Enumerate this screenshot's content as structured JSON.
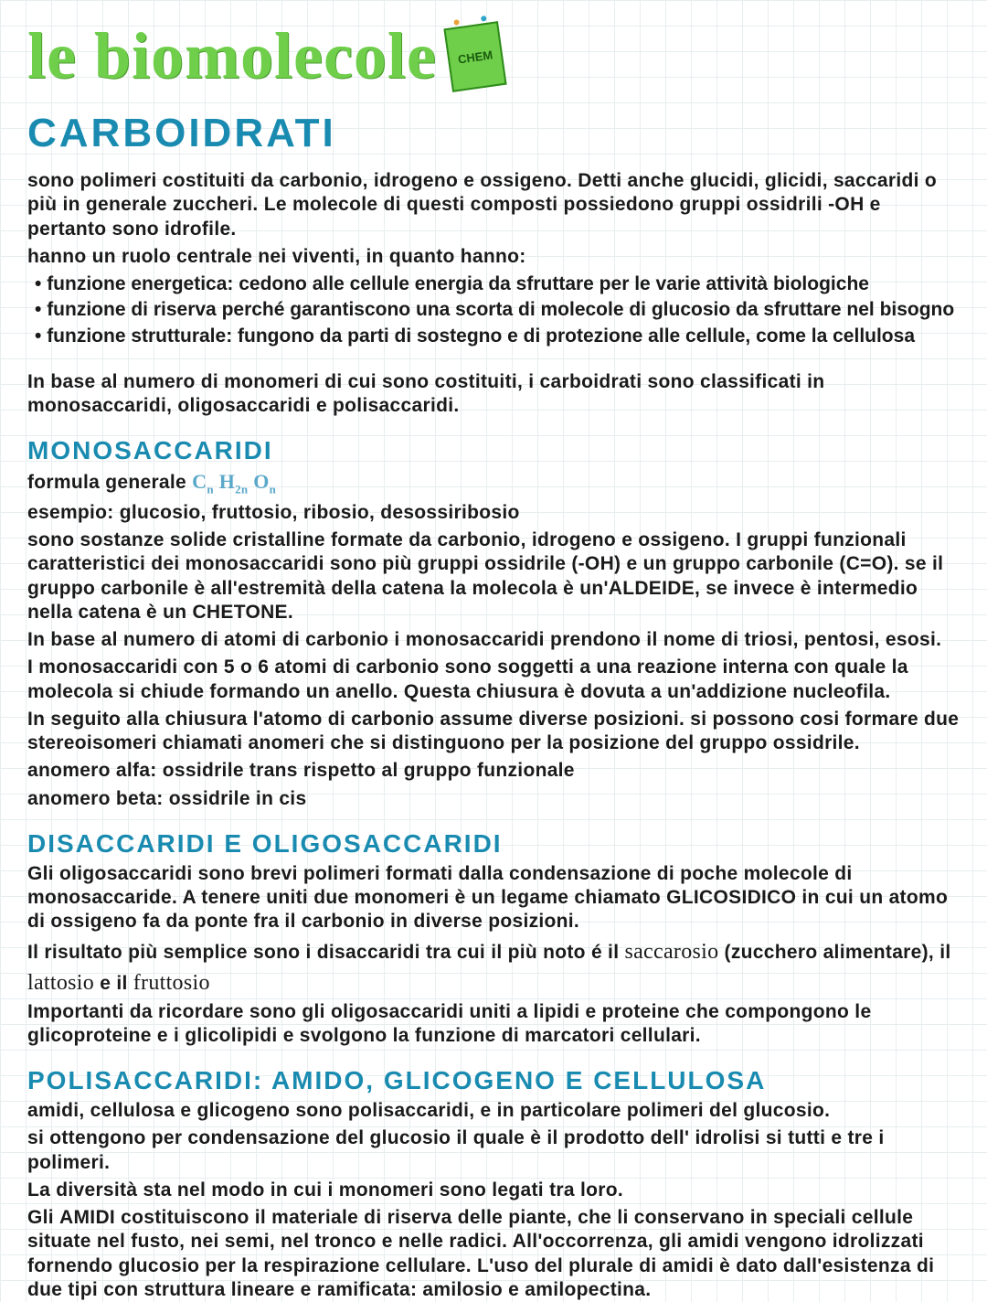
{
  "colors": {
    "background": "#ffffff",
    "grid": "#e8eef0",
    "title_green": "#6fcf4b",
    "heading_blue": "#1a8bb0",
    "body_text": "#1a1a1a",
    "formula_blue": "#5aa8c9"
  },
  "main_title": "le biomolecole",
  "badge_label": "CHEM",
  "section1": {
    "heading": "CARBOIDRATI",
    "p1": "sono polimeri costituiti da carbonio, idrogeno e ossigeno. Detti anche glucidi, glicidi, saccaridi o più in generale zuccheri. Le molecole di questi composti possiedono gruppi ossidrili -OH e pertanto sono idrofile.",
    "p2": "hanno un ruolo centrale nei viventi, in quanto hanno:",
    "bullets": [
      "funzione energetica: cedono alle cellule energia da sfruttare per le varie attività biologiche",
      "funzione di riserva perché garantiscono una scorta di molecole di glucosio da sfruttare nel bisogno",
      "funzione strutturale: fungono da parti di sostegno e di protezione alle cellule, come la cellulosa"
    ],
    "p3": "In base al numero di monomeri di cui sono costituiti, i carboidrati sono classificati in monosaccaridi, oligosaccaridi e polisaccaridi."
  },
  "mono": {
    "heading": "MONOSACCARIDI",
    "formula_label": "formula generale ",
    "formula": "Cn H2n On",
    "p1": "esempio: glucosio, fruttosio, ribosio, desossiribosio",
    "p2": "sono sostanze solide cristalline formate da carbonio, idrogeno e ossigeno. I gruppi funzionali caratteristici dei monosaccaridi sono più gruppi ossidrile (-OH) e un gruppo carbonile (C=O). se il gruppo carbonile è all'estremità della catena la molecola è un'ALDEIDE, se invece è intermedio nella catena è un CHETONE.",
    "p3": "In base al numero di atomi di carbonio i monosaccaridi prendono il nome di triosi, pentosi, esosi.",
    "p4": "I monosaccaridi con 5 o 6 atomi di carbonio sono soggetti a una reazione interna con quale la molecola si chiude formando un anello. Questa chiusura è dovuta a un'addizione nucleofila.",
    "p5": "In seguito alla chiusura l'atomo di carbonio assume diverse posizioni. si possono cosi formare due stereoisomeri chiamati anomeri che si distinguono per la posizione del gruppo ossidrile.",
    "p6": "anomero alfa: ossidrile trans rispetto al gruppo funzionale",
    "p7": "anomero beta: ossidrile in cis"
  },
  "di": {
    "heading": "DISACCARIDI E OLIGOSACCARIDI",
    "p1": "Gli oligosaccaridi sono brevi polimeri formati dalla condensazione di poche molecole di monosaccaride.  A tenere uniti due monomeri è un legame chiamato GLICOSIDICO in cui un atomo di ossigeno fa da ponte fra il carbonio in diverse posizioni.",
    "p2a": "Il risultato più semplice sono i disaccaridi tra cui il più noto é il ",
    "p2b_cursive": "saccarosio",
    "p2c": " (zucchero alimentare), il",
    "p3a_cursive": "lattosio",
    "p3b": " e il ",
    "p3c_cursive": "fruttosio",
    "p4": "Importanti da ricordare sono gli oligosaccaridi uniti a lipidi e proteine che compongono le glicoproteine e i glicolipidi e svolgono la funzione di marcatori cellulari."
  },
  "poli": {
    "heading": "POLISACCARIDI: AMIDO, GLICOGENO E CELLULOSA",
    "p1": "amidi, cellulosa e glicogeno sono polisaccaridi, e in particolare polimeri del glucosio.",
    "p2": "si ottengono per condensazione del glucosio il quale è il prodotto dell' idrolisi si tutti e tre i polimeri.",
    "p3": "La diversità sta nel modo in cui i monomeri sono legati tra loro.",
    "p4a": "Gli ",
    "p4b_bold": "AMIDI",
    "p4c": " costituiscono il materiale di riserva delle piante, che li conservano in speciali cellule situate nel fusto, nei semi, nel tronco e nelle radici. All'occorrenza, gli amidi vengono idrolizzati fornendo glucosio per la respirazione cellulare. L'uso del plurale di amidi è dato dall'esistenza di due tipi con struttura lineare e ramificata: amilosio e amilopectina."
  }
}
